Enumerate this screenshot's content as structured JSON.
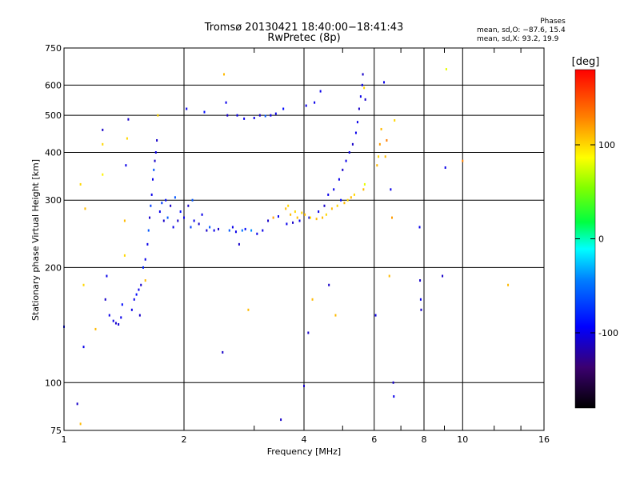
{
  "chart_data": {
    "type": "scatter",
    "title": "Tromsø 20130421 18:40:00−18:41:43",
    "subtitle": "RwPretec (8p)",
    "xlabel": "Frequency [MHz]",
    "ylabel": "Stationary phase Virtual Height [km]",
    "x_scale": "log",
    "y_scale": "log",
    "xlim": [
      1,
      16
    ],
    "ylim": [
      75,
      750
    ],
    "x_ticks": [
      1,
      2,
      4,
      6,
      8,
      10,
      16
    ],
    "x_minor_ticks": [
      3,
      5,
      7,
      9,
      12,
      14
    ],
    "y_ticks": [
      75,
      100,
      200,
      300,
      400,
      500,
      600,
      750
    ],
    "grid": true,
    "stats": {
      "header": "Phases",
      "line_o": "mean, sd,O:  −87.6, 15.4",
      "line_x": "mean, sd,X:   93.2, 19.9"
    },
    "colorbar": {
      "label": "[deg]",
      "range": [
        -180,
        180
      ],
      "ticks": [
        -100,
        0,
        100
      ]
    },
    "series_note": "phase encoded by colour",
    "points": [
      [
        1.0,
        140,
        -90
      ],
      [
        1.08,
        88,
        -110
      ],
      [
        1.1,
        78,
        110
      ],
      [
        1.1,
        330,
        100
      ],
      [
        1.12,
        124,
        -100
      ],
      [
        1.12,
        180,
        100
      ],
      [
        1.13,
        285,
        110
      ],
      [
        1.2,
        138,
        110
      ],
      [
        1.25,
        350,
        90
      ],
      [
        1.25,
        420,
        100
      ],
      [
        1.25,
        458,
        -110
      ],
      [
        1.27,
        165,
        -110
      ],
      [
        1.28,
        190,
        -100
      ],
      [
        1.3,
        150,
        -100
      ],
      [
        1.33,
        145,
        -100
      ],
      [
        1.35,
        143,
        -110
      ],
      [
        1.37,
        142,
        -105
      ],
      [
        1.39,
        148,
        -100
      ],
      [
        1.4,
        160,
        -90
      ],
      [
        1.42,
        215,
        100
      ],
      [
        1.42,
        265,
        110
      ],
      [
        1.43,
        370,
        -100
      ],
      [
        1.44,
        435,
        100
      ],
      [
        1.45,
        488,
        -110
      ],
      [
        1.48,
        155,
        -100
      ],
      [
        1.5,
        165,
        -100
      ],
      [
        1.52,
        170,
        -90
      ],
      [
        1.54,
        175,
        -100
      ],
      [
        1.55,
        150,
        -110
      ],
      [
        1.56,
        180,
        -110
      ],
      [
        1.58,
        200,
        -80
      ],
      [
        1.6,
        185,
        110
      ],
      [
        1.6,
        210,
        -100
      ],
      [
        1.62,
        230,
        -100
      ],
      [
        1.63,
        250,
        -60
      ],
      [
        1.64,
        270,
        -110
      ],
      [
        1.65,
        290,
        -70
      ],
      [
        1.66,
        310,
        -100
      ],
      [
        1.67,
        340,
        -100
      ],
      [
        1.68,
        360,
        -60
      ],
      [
        1.69,
        380,
        -110
      ],
      [
        1.7,
        400,
        -100
      ],
      [
        1.71,
        430,
        -110
      ],
      [
        1.72,
        500,
        100
      ],
      [
        1.74,
        280,
        -100
      ],
      [
        1.76,
        295,
        -70
      ],
      [
        1.78,
        265,
        -110
      ],
      [
        1.8,
        300,
        -90
      ],
      [
        1.82,
        270,
        -60
      ],
      [
        1.85,
        290,
        -110
      ],
      [
        1.88,
        255,
        -100
      ],
      [
        1.9,
        305,
        -60
      ],
      [
        1.93,
        265,
        -110
      ],
      [
        1.96,
        280,
        -90
      ],
      [
        2.0,
        270,
        -100
      ],
      [
        2.03,
        520,
        -100
      ],
      [
        2.05,
        290,
        -110
      ],
      [
        2.08,
        255,
        -70
      ],
      [
        2.1,
        300,
        -60
      ],
      [
        2.12,
        265,
        -100
      ],
      [
        2.18,
        260,
        -110
      ],
      [
        2.22,
        275,
        -100
      ],
      [
        2.25,
        510,
        -90
      ],
      [
        2.28,
        250,
        -110
      ],
      [
        2.32,
        255,
        -60
      ],
      [
        2.38,
        250,
        -100
      ],
      [
        2.44,
        252,
        -110
      ],
      [
        2.5,
        120,
        -110
      ],
      [
        2.52,
        640,
        110
      ],
      [
        2.55,
        540,
        -100
      ],
      [
        2.57,
        500,
        -110
      ],
      [
        2.6,
        250,
        -60
      ],
      [
        2.65,
        255,
        -100
      ],
      [
        2.7,
        248,
        -100
      ],
      [
        2.72,
        500,
        -100
      ],
      [
        2.75,
        230,
        -110
      ],
      [
        2.8,
        250,
        -50
      ],
      [
        2.83,
        490,
        -100
      ],
      [
        2.85,
        252,
        -90
      ],
      [
        2.9,
        155,
        110
      ],
      [
        2.95,
        250,
        -40
      ],
      [
        3.0,
        492,
        -100
      ],
      [
        3.05,
        245,
        -100
      ],
      [
        3.1,
        500,
        -110
      ],
      [
        3.15,
        250,
        -100
      ],
      [
        3.2,
        498,
        -60
      ],
      [
        3.25,
        265,
        -110
      ],
      [
        3.3,
        500,
        -100
      ],
      [
        3.35,
        270,
        120
      ],
      [
        3.4,
        505,
        -100
      ],
      [
        3.45,
        272,
        -100
      ],
      [
        3.5,
        80,
        -110
      ],
      [
        3.55,
        520,
        -90
      ],
      [
        3.6,
        285,
        110
      ],
      [
        3.62,
        260,
        -100
      ],
      [
        3.65,
        290,
        100
      ],
      [
        3.7,
        275,
        110
      ],
      [
        3.75,
        262,
        -110
      ],
      [
        3.8,
        280,
        100
      ],
      [
        3.85,
        270,
        110
      ],
      [
        3.9,
        265,
        -100
      ],
      [
        3.95,
        278,
        100
      ],
      [
        4.0,
        98,
        -110
      ],
      [
        4.02,
        275,
        110
      ],
      [
        4.05,
        530,
        -100
      ],
      [
        4.1,
        135,
        -110
      ],
      [
        4.12,
        270,
        -90
      ],
      [
        4.15,
        270,
        100
      ],
      [
        4.2,
        165,
        110
      ],
      [
        4.25,
        540,
        -100
      ],
      [
        4.3,
        268,
        110
      ],
      [
        4.35,
        280,
        -100
      ],
      [
        4.4,
        578,
        -100
      ],
      [
        4.45,
        270,
        110
      ],
      [
        4.5,
        290,
        -110
      ],
      [
        4.55,
        275,
        100
      ],
      [
        4.6,
        310,
        -100
      ],
      [
        4.62,
        180,
        -110
      ],
      [
        4.7,
        285,
        110
      ],
      [
        4.75,
        320,
        -100
      ],
      [
        4.8,
        150,
        110
      ],
      [
        4.85,
        290,
        100
      ],
      [
        4.9,
        340,
        -100
      ],
      [
        4.95,
        300,
        -90
      ],
      [
        5.0,
        360,
        -110
      ],
      [
        5.05,
        295,
        110
      ],
      [
        5.1,
        380,
        -100
      ],
      [
        5.15,
        300,
        100
      ],
      [
        5.2,
        400,
        -100
      ],
      [
        5.25,
        305,
        110
      ],
      [
        5.3,
        420,
        -110
      ],
      [
        5.35,
        310,
        100
      ],
      [
        5.4,
        450,
        -100
      ],
      [
        5.45,
        480,
        -100
      ],
      [
        5.5,
        520,
        -110
      ],
      [
        5.55,
        560,
        -100
      ],
      [
        5.6,
        600,
        -100
      ],
      [
        5.62,
        640,
        -110
      ],
      [
        5.64,
        320,
        110
      ],
      [
        5.66,
        590,
        100
      ],
      [
        5.68,
        330,
        80
      ],
      [
        5.7,
        550,
        -110
      ],
      [
        6.05,
        150,
        -100
      ],
      [
        6.1,
        370,
        110
      ],
      [
        6.15,
        390,
        100
      ],
      [
        6.2,
        420,
        120
      ],
      [
        6.25,
        460,
        110
      ],
      [
        6.35,
        610,
        -100
      ],
      [
        6.4,
        390,
        110
      ],
      [
        6.45,
        430,
        130
      ],
      [
        6.55,
        190,
        110
      ],
      [
        6.6,
        320,
        -100
      ],
      [
        6.65,
        270,
        120
      ],
      [
        6.7,
        100,
        -110
      ],
      [
        6.72,
        92,
        -100
      ],
      [
        6.75,
        485,
        100
      ],
      [
        7.8,
        255,
        -100
      ],
      [
        7.82,
        185,
        -110
      ],
      [
        7.85,
        165,
        -100
      ],
      [
        7.87,
        155,
        -110
      ],
      [
        8.9,
        190,
        -110
      ],
      [
        9.05,
        365,
        -100
      ],
      [
        9.1,
        660,
        80
      ],
      [
        10.0,
        380,
        130
      ],
      [
        13.0,
        180,
        110
      ]
    ]
  }
}
